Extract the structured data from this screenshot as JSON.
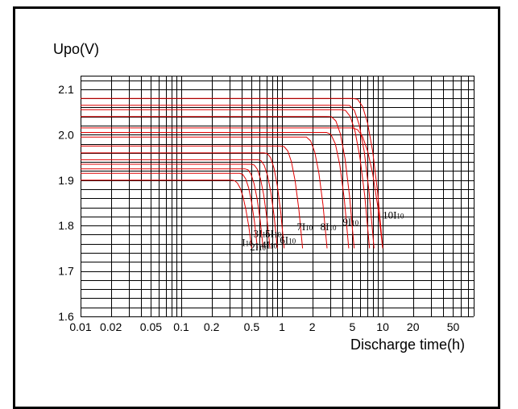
{
  "chart_data": {
    "type": "line",
    "ylabel": "Upo(V)",
    "xlabel": "Discharge time(h)",
    "xscale": "log",
    "xlim": [
      0.01,
      80
    ],
    "ylim": [
      1.6,
      2.13
    ],
    "xticks": [
      {
        "value": 0.01,
        "label": "0.01"
      },
      {
        "value": 0.02,
        "label": "0.02"
      },
      {
        "value": 0.05,
        "label": "0.05"
      },
      {
        "value": 0.1,
        "label": "0.1"
      },
      {
        "value": 0.2,
        "label": "0.2"
      },
      {
        "value": 0.5,
        "label": "0.5"
      },
      {
        "value": 1,
        "label": "1"
      },
      {
        "value": 2,
        "label": "2"
      },
      {
        "value": 5,
        "label": "5"
      },
      {
        "value": 10,
        "label": "10"
      },
      {
        "value": 20,
        "label": "20"
      },
      {
        "value": 50,
        "label": "50"
      }
    ],
    "yticks": [
      {
        "value": 1.6,
        "label": "1.6"
      },
      {
        "value": 1.7,
        "label": "1.7"
      },
      {
        "value": 1.8,
        "label": "1.8"
      },
      {
        "value": 1.9,
        "label": "1.9"
      },
      {
        "value": 2.0,
        "label": "2.0"
      },
      {
        "value": 2.1,
        "label": "2.1"
      }
    ],
    "grid": true,
    "line_color": "#e00000",
    "series": [
      {
        "name": "I10",
        "prefix": "I",
        "sub": "10",
        "v0": 1.9,
        "t_end": 0.5,
        "knee": 0.32,
        "label_x": 0.4,
        "label_y": 1.755
      },
      {
        "name": "2I10",
        "prefix": "2I",
        "sub": "10",
        "v0": 1.915,
        "t_end": 0.57,
        "knee": 0.38,
        "label_x": 0.48,
        "label_y": 1.745
      },
      {
        "name": "3I10",
        "prefix": "3I",
        "sub": "10",
        "v0": 1.925,
        "t_end": 0.65,
        "knee": 0.43,
        "label_x": 0.52,
        "label_y": 1.775
      },
      {
        "name": "4I10",
        "prefix": "4I",
        "sub": "10",
        "v0": 1.935,
        "t_end": 0.76,
        "knee": 0.5,
        "label_x": 0.62,
        "label_y": 1.75
      },
      {
        "name": "5I10",
        "prefix": "5I",
        "sub": "10",
        "v0": 1.945,
        "t_end": 0.9,
        "knee": 0.58,
        "label_x": 0.68,
        "label_y": 1.775
      },
      {
        "name": "6I10",
        "prefix": "6I",
        "sub": "10",
        "v0": 1.96,
        "t_end": 1.05,
        "knee": 0.68,
        "label_x": 0.95,
        "label_y": 1.76
      },
      {
        "name": "7I10",
        "prefix": "7I",
        "sub": "10",
        "v0": 1.975,
        "t_end": 1.6,
        "knee": 1.0,
        "label_x": 1.4,
        "label_y": 1.79
      },
      {
        "name": "8I10",
        "prefix": "8I",
        "sub": "10",
        "v0": 1.995,
        "t_end": 2.8,
        "knee": 1.7,
        "label_x": 2.4,
        "label_y": 1.79
      },
      {
        "name": "9I10",
        "prefix": "9I",
        "sub": "10",
        "v0": 2.005,
        "t_end": 4.6,
        "knee": 2.8,
        "label_x": 4.0,
        "label_y": 1.8
      },
      {
        "name": "10I10",
        "prefix": "10I",
        "sub": "10",
        "v0": 2.015,
        "t_end": 10.0,
        "knee": 5.0,
        "label_x": 10.0,
        "label_y": 1.815
      },
      {
        "name": "",
        "prefix": "",
        "sub": "",
        "v0": 2.04,
        "t_end": 5.2,
        "knee": 3.0,
        "label_x": 0,
        "label_y": 0
      },
      {
        "name": "",
        "prefix": "",
        "sub": "",
        "v0": 2.055,
        "t_end": 7.4,
        "knee": 4.0,
        "label_x": 0,
        "label_y": 0
      },
      {
        "name": "",
        "prefix": "",
        "sub": "",
        "v0": 2.065,
        "t_end": 8.2,
        "knee": 4.5,
        "label_x": 0,
        "label_y": 0
      },
      {
        "name": "",
        "prefix": "",
        "sub": "",
        "v0": 2.08,
        "t_end": 10.0,
        "knee": 5.2,
        "label_x": 0,
        "label_y": 0
      }
    ]
  }
}
